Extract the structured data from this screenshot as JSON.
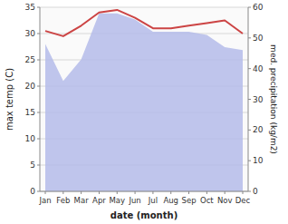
{
  "chart_data": {
    "type": "line",
    "xlabel": "date (month)",
    "ylabel": "max temp (C)",
    "y2label": "med. precipitation (kg/m2)",
    "categories": [
      "Jan",
      "Feb",
      "Mar",
      "Apr",
      "May",
      "Jun",
      "Jul",
      "Aug",
      "Sep",
      "Oct",
      "Nov",
      "Dec"
    ],
    "series": [
      {
        "type": "area",
        "axis": "y2",
        "color": "#b0b8e8",
        "values": [
          48,
          36,
          43,
          58,
          58,
          56,
          52,
          52,
          52,
          51,
          47,
          46
        ]
      },
      {
        "type": "line",
        "color": "#cc4444",
        "values": [
          30.5,
          29.5,
          31.5,
          34.0,
          34.5,
          33.0,
          31.0,
          31.0,
          31.5,
          32.0,
          32.5,
          30.0
        ]
      }
    ],
    "ylim": [
      0,
      35
    ],
    "yticks": [
      0,
      5,
      10,
      15,
      20,
      25,
      30,
      35
    ],
    "y2lim": [
      0,
      60
    ],
    "y2ticks": [
      0,
      10,
      20,
      30,
      40,
      50,
      60
    ],
    "grid": true
  }
}
